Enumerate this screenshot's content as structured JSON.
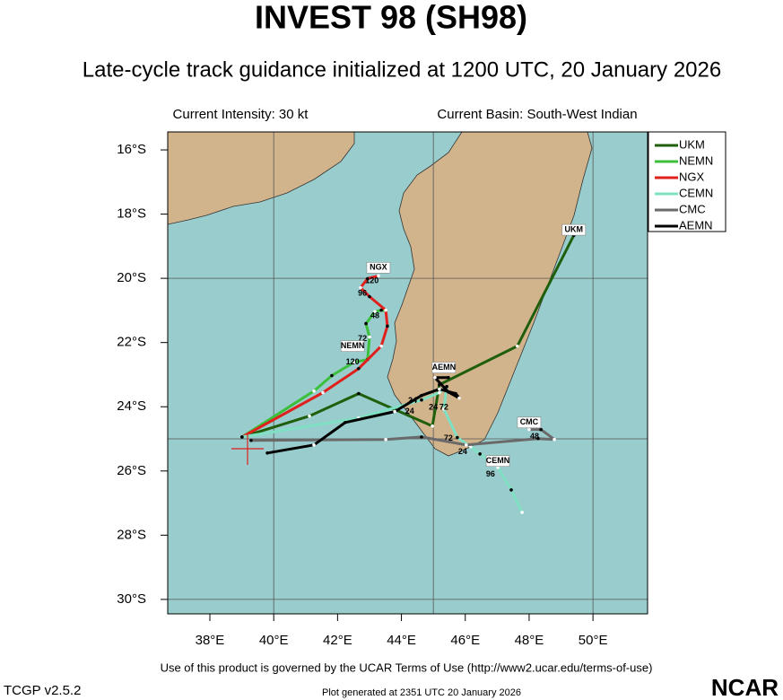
{
  "chart_data": {
    "type": "track-map",
    "title": "INVEST 98 (SH98)",
    "subtitle": "Late-cycle track guidance initialized at 1200 UTC, 20 January 2026",
    "info_left": "Current Intensity: 30 kt",
    "info_right": "Current Basin: South-West Indian",
    "footer": "Use of this product is governed by the UCAR Terms of Use (http://www2.ucar.edu/terms-of-use)",
    "version": "TCGP v2.5.2",
    "generated": "Plot generated at 2351 UTC  20 January 2026",
    "logo": "NCAR",
    "xlim": [
      36.68,
      51.71
    ],
    "ylim": [
      -30.45,
      -15.44
    ],
    "xticks": [
      {
        "value": 38,
        "label": "38°E"
      },
      {
        "value": 40,
        "label": "40°E"
      },
      {
        "value": 42,
        "label": "42°E"
      },
      {
        "value": 44,
        "label": "44°E"
      },
      {
        "value": 46,
        "label": "46°E"
      },
      {
        "value": 48,
        "label": "48°E"
      },
      {
        "value": 50,
        "label": "50°E"
      }
    ],
    "yticks": [
      {
        "value": -16,
        "label": "16°S"
      },
      {
        "value": -18,
        "label": "18°S"
      },
      {
        "value": -20,
        "label": "20°S"
      },
      {
        "value": -22,
        "label": "22°S"
      },
      {
        "value": -24,
        "label": "24°S"
      },
      {
        "value": -26,
        "label": "26°S"
      },
      {
        "value": -28,
        "label": "28°S"
      },
      {
        "value": -30,
        "label": "30°S"
      }
    ],
    "grid_lon": [
      40,
      45,
      50
    ],
    "grid_lat": [
      -20,
      -25,
      -30
    ],
    "legend": "right",
    "series": [
      {
        "name": "UKM",
        "color": "#1f5f0c",
        "tag": [
          49.4,
          -18.49
        ],
        "x": [
          39.01,
          41.12,
          42.66,
          44.97,
          45.19,
          47.63,
          49.4
        ],
        "y": [
          -24.94,
          -24.29,
          -23.59,
          -24.6,
          -23.31,
          -22.11,
          -18.66
        ],
        "labels": []
      },
      {
        "name": "NEMN",
        "color": "#3cc03c",
        "tag": [
          42.47,
          -22.11
        ],
        "x": [
          39.01,
          41.26,
          41.82,
          42.52,
          42.94,
          43.0,
          42.89,
          43.17,
          43.37,
          43.51
        ],
        "y": [
          -24.94,
          -23.51,
          -23.03,
          -22.61,
          -22.53,
          -21.83,
          -21.41,
          -21.04,
          -20.99,
          -21.01
        ],
        "labels": [
          {
            "text": "72",
            "lon": 42.78,
            "lat": -21.88
          },
          {
            "text": "120",
            "lon": 42.47,
            "lat": -22.61
          },
          {
            "text": "48",
            "lon": 43.17,
            "lat": -21.18
          }
        ]
      },
      {
        "name": "NGX",
        "color": "#e0201c",
        "tag": [
          43.28,
          -19.67
        ],
        "x": [
          39.01,
          41.54,
          42.66,
          43.37,
          43.56,
          43.51,
          43.0,
          42.72,
          42.94,
          43.28
        ],
        "y": [
          -24.94,
          -23.56,
          -22.81,
          -22.11,
          -21.49,
          -20.99,
          -20.57,
          -20.29,
          -20.01,
          -19.92
        ],
        "labels": [
          {
            "text": "120",
            "lon": 43.08,
            "lat": -20.09
          },
          {
            "text": "96",
            "lon": 42.78,
            "lat": -20.48
          }
        ]
      },
      {
        "name": "CEMN",
        "color": "#80e0c4",
        "tag": [
          47.02,
          -25.69
        ],
        "x": [
          39.01,
          42.66,
          44.63,
          45.19,
          45.42,
          45.33,
          45.75,
          46.17,
          46.46,
          47.02,
          47.44,
          47.78
        ],
        "y": [
          -24.94,
          -24.35,
          -23.79,
          -23.56,
          -23.37,
          -24.07,
          -24.96,
          -25.24,
          -25.47,
          -25.89,
          -26.59,
          -27.29
        ],
        "labels": [
          {
            "text": "96",
            "lon": 46.79,
            "lat": -26.11
          },
          {
            "text": "72",
            "lon": 45.47,
            "lat": -24.99
          }
        ]
      },
      {
        "name": "CMC",
        "color": "#6a6a6a",
        "tag": [
          48.0,
          -24.49
        ],
        "x": [
          39.29,
          43.51,
          44.63,
          46.03,
          48.28,
          48.79,
          48.37,
          48.0
        ],
        "y": [
          -25.05,
          -25.02,
          -24.94,
          -25.19,
          -24.99,
          -25.02,
          -24.71,
          -24.71
        ],
        "labels": [
          {
            "text": "48",
            "lon": 48.17,
            "lat": -24.94
          }
        ]
      },
      {
        "name": "AEMN",
        "color": "#000000",
        "tag": [
          45.33,
          -22.78
        ],
        "x": [
          39.8,
          41.26,
          42.24,
          43.79,
          44.63,
          45.19,
          45.7,
          45.81,
          45.47,
          45.05,
          45.47
        ],
        "y": [
          -25.44,
          -25.19,
          -24.49,
          -24.15,
          -23.65,
          -23.45,
          -23.59,
          -23.73,
          -23.54,
          -23.09,
          -23.09
        ],
        "labels": [
          {
            "text": "24",
            "lon": 44.35,
            "lat": -23.82
          },
          {
            "text": "24",
            "lon": 44.26,
            "lat": -24.15
          },
          {
            "text": "24",
            "lon": 45.92,
            "lat": -25.41
          },
          {
            "text": "24",
            "lon": 45.0,
            "lat": -24.02
          },
          {
            "text": "72",
            "lon": 45.33,
            "lat": -24.02
          }
        ]
      }
    ]
  }
}
